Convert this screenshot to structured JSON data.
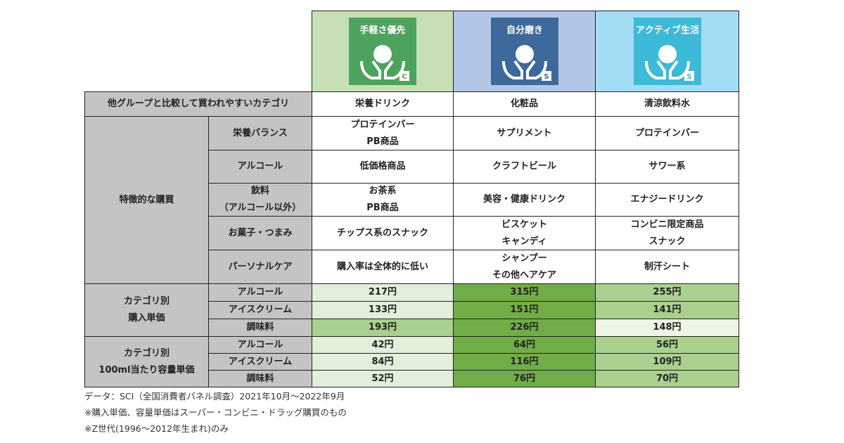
{
  "header": {
    "columns": [
      {
        "label": "手軽さ優先",
        "badge": "C",
        "background": "#c6e0b4",
        "icon_color": "#4da35e"
      },
      {
        "label": "自分磨き",
        "badge": "S",
        "background": "#b4c6e7",
        "icon_color": "#3d6a9b"
      },
      {
        "label": "アクティブ生活",
        "badge": "S",
        "background": "#a3ddf5",
        "icon_color": "#3cbad8"
      }
    ]
  },
  "table": {
    "top_row": {
      "label": "他グループと比較して買われやすいカテゴリ",
      "cells": [
        "栄養ドリンク",
        "化粧品",
        "清涼飲料水"
      ]
    },
    "purchase_group": {
      "label": [
        "特徴的な購買"
      ],
      "rows": [
        {
          "label": [
            "栄養バランス"
          ],
          "cells": [
            [
              "プロテインバー",
              "PB商品"
            ],
            [
              "サプリメント"
            ],
            [
              "プロテインバー"
            ]
          ]
        },
        {
          "label": [
            "アルコール"
          ],
          "cells": [
            [
              "低価格商品"
            ],
            [
              "クラフトビール"
            ],
            [
              "サワー系"
            ]
          ]
        },
        {
          "label": [
            "飲料",
            "（アルコール以外）"
          ],
          "cells": [
            [
              "お茶系",
              "PB商品"
            ],
            [
              "美容・健康ドリンク"
            ],
            [
              "エナジードリンク"
            ]
          ]
        },
        {
          "label": [
            "お菓子・つまみ"
          ],
          "cells": [
            [
              "チップス系のスナック"
            ],
            [
              "ビスケット",
              "キャンディ"
            ],
            [
              "コンビニ限定商品",
              "スナック"
            ]
          ]
        },
        {
          "label": [
            "パーソナルケア"
          ],
          "cells": [
            [
              "購入率は全体的に低い"
            ],
            [
              "シャンプー",
              "その他ヘアケア"
            ],
            [
              "制汗シート"
            ]
          ]
        }
      ]
    },
    "price_groups": [
      {
        "label": [
          "カテゴリ別",
          "購入単価"
        ],
        "rows": [
          {
            "label": "アルコール",
            "cells": [
              "217円",
              "315円",
              "255円"
            ],
            "colors": [
              "#e2efda",
              "#70ad47",
              "#a9d08e"
            ]
          },
          {
            "label": "アイスクリーム",
            "cells": [
              "133円",
              "151円",
              "141円"
            ],
            "colors": [
              "#e2efda",
              "#70ad47",
              "#a9d08e"
            ]
          },
          {
            "label": "調味料",
            "cells": [
              "193円",
              "226円",
              "148円"
            ],
            "colors": [
              "#a9d08e",
              "#70ad47",
              "#eef6e8"
            ]
          }
        ]
      },
      {
        "label": [
          "カテゴリ別",
          "100ml当たり容量単価"
        ],
        "rows": [
          {
            "label": "アルコール",
            "cells": [
              "42円",
              "64円",
              "56円"
            ],
            "colors": [
              "#e2efda",
              "#70ad47",
              "#a9d08e"
            ]
          },
          {
            "label": "アイスクリーム",
            "cells": [
              "84円",
              "116円",
              "109円"
            ],
            "colors": [
              "#e2efda",
              "#70ad47",
              "#a9d08e"
            ]
          },
          {
            "label": "調味料",
            "cells": [
              "52円",
              "76円",
              "70円"
            ],
            "colors": [
              "#e2efda",
              "#70ad47",
              "#a9d08e"
            ]
          }
        ]
      }
    ]
  },
  "notes": [
    "データ：SCI（全国消費者パネル調査）2021年10月～2022年9月",
    "※購入単価、容量単価はスーパー・コンビニ・ドラッグ購買のもの",
    "※Z世代(1996～2012年生まれ)のみ"
  ]
}
